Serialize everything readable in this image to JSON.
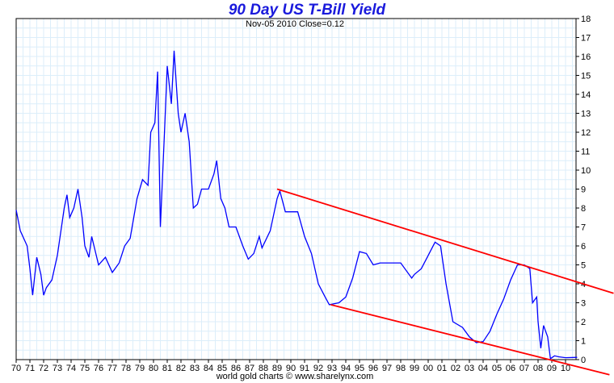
{
  "chart_data": {
    "type": "line",
    "title": "90 Day US T-Bill Yield",
    "subtitle": "Nov-05 2010   Close=0.12",
    "footer": "world gold charts © www.sharelynx.com",
    "xlim": [
      1970,
      2010.85
    ],
    "ylim": [
      0,
      18
    ],
    "grid": true,
    "x_tick_labels": [
      "70",
      "71",
      "72",
      "73",
      "74",
      "75",
      "76",
      "77",
      "78",
      "79",
      "80",
      "81",
      "82",
      "83",
      "84",
      "85",
      "86",
      "87",
      "88",
      "89",
      "90",
      "91",
      "92",
      "93",
      "94",
      "95",
      "96",
      "97",
      "98",
      "99",
      "00",
      "01",
      "02",
      "03",
      "04",
      "05",
      "06",
      "07",
      "08",
      "09",
      "10"
    ],
    "y_ticks": [
      0,
      1,
      2,
      3,
      4,
      5,
      6,
      7,
      8,
      9,
      10,
      11,
      12,
      13,
      14,
      15,
      16,
      17,
      18
    ],
    "y_axis_side": "right",
    "colors": {
      "series": "#0000ff",
      "trendlines": "#ff0000",
      "grid": "#dceefa",
      "title": "#1a1adc"
    },
    "series": [
      {
        "x": [
          1970.0,
          1970.3,
          1970.8,
          1971.0,
          1971.2,
          1971.5,
          1971.8,
          1972.0,
          1972.2,
          1972.6,
          1973.0,
          1973.5,
          1973.7,
          1973.9,
          1974.2,
          1974.5,
          1974.8,
          1975.0,
          1975.3,
          1975.5,
          1975.8,
          1976.0,
          1976.5,
          1977.0,
          1977.5,
          1977.9,
          1978.3,
          1978.8,
          1979.2,
          1979.6,
          1979.8,
          1980.1,
          1980.3,
          1980.5,
          1980.8,
          1981.0,
          1981.3,
          1981.5,
          1981.8,
          1982.0,
          1982.3,
          1982.6,
          1982.9,
          1983.2,
          1983.5,
          1984.0,
          1984.4,
          1984.6,
          1984.9,
          1985.2,
          1985.5,
          1986.0,
          1986.5,
          1986.9,
          1987.3,
          1987.7,
          1987.9,
          1988.5,
          1989.0,
          1989.2,
          1989.6,
          1990.5,
          1991.0,
          1991.5,
          1992.0,
          1992.5,
          1992.8,
          1993.5,
          1994.0,
          1994.5,
          1995.0,
          1995.5,
          1996.0,
          1996.5,
          1997.0,
          1998.0,
          1998.8,
          1999.0,
          1999.5,
          2000.0,
          2000.5,
          2000.9,
          2001.3,
          2001.8,
          2002.5,
          2003.0,
          2003.5,
          2004.0,
          2004.5,
          2005.0,
          2005.5,
          2006.0,
          2006.5,
          2007.0,
          2007.4,
          2007.6,
          2007.9,
          2008.0,
          2008.2,
          2008.4,
          2008.7,
          2008.9,
          2009.2,
          2009.5,
          2010.0,
          2010.85
        ],
        "y": [
          7.9,
          6.8,
          6.0,
          4.8,
          3.4,
          5.4,
          4.5,
          3.4,
          3.8,
          4.2,
          5.5,
          8.0,
          8.7,
          7.5,
          8.0,
          9.0,
          7.5,
          6.0,
          5.4,
          6.5,
          5.6,
          5.0,
          5.4,
          4.6,
          5.1,
          6.0,
          6.4,
          8.5,
          9.5,
          9.2,
          12.0,
          12.5,
          15.2,
          7.0,
          12.0,
          15.5,
          13.5,
          16.3,
          13.0,
          12.0,
          13.0,
          11.5,
          8.0,
          8.2,
          9.0,
          9.0,
          9.8,
          10.5,
          8.5,
          8.0,
          7.0,
          7.0,
          6.0,
          5.3,
          5.6,
          6.5,
          5.9,
          6.8,
          8.5,
          8.9,
          7.8,
          7.8,
          6.5,
          5.6,
          4.0,
          3.3,
          2.9,
          3.0,
          3.3,
          4.3,
          5.7,
          5.6,
          5.0,
          5.1,
          5.1,
          5.1,
          4.3,
          4.5,
          4.8,
          5.5,
          6.2,
          6.0,
          4.0,
          2.0,
          1.7,
          1.2,
          0.9,
          0.95,
          1.5,
          2.4,
          3.2,
          4.2,
          5.0,
          5.0,
          4.8,
          3.0,
          3.3,
          2.0,
          0.6,
          1.8,
          1.2,
          0.05,
          0.2,
          0.15,
          0.1,
          0.12
        ]
      }
    ],
    "trendlines": [
      {
        "x": [
          1989.0,
          2013.5
        ],
        "y": [
          9.0,
          3.5
        ]
      },
      {
        "x": [
          1992.9,
          2013.2
        ],
        "y": [
          2.9,
          -0.8
        ]
      }
    ]
  }
}
